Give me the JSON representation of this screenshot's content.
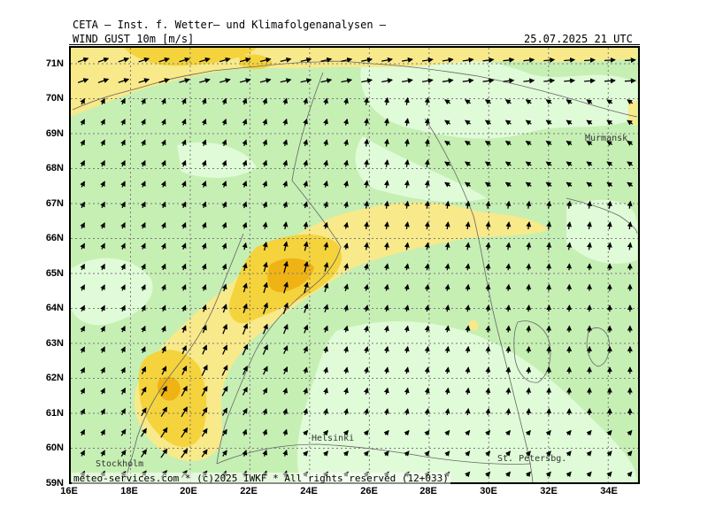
{
  "header": {
    "institute": "CETA – Inst. f. Wetter– und Klimafolgenanalysen –",
    "field": "WIND GUST 10m [m/s]",
    "valid_time": "25.07.2025 21 UTC"
  },
  "axes": {
    "lat_ticks": [
      "71N",
      "70N",
      "69N",
      "68N",
      "67N",
      "66N",
      "65N",
      "64N",
      "63N",
      "62N",
      "61N",
      "60N",
      "59N"
    ],
    "lon_ticks": [
      "16E",
      "18E",
      "20E",
      "22E",
      "24E",
      "26E",
      "28E",
      "30E",
      "32E",
      "34E"
    ]
  },
  "cities": {
    "murmansk": "Murmansk",
    "helsinki": "Helsinki",
    "stockholm": "Stockholm",
    "st_petersburg": "St. Petersbg."
  },
  "credit": "meteo-services.com * (c)2025 IWKF * All rights reserved (12+033)",
  "colors": {
    "land_light": "#e0fbd8",
    "land_mid": "#c6efb4",
    "gust_moderate": "#f8e98a",
    "gust_high": "#f5d33c",
    "gust_max": "#f0b316",
    "coast": "#666666",
    "grid": "#7a7a7a",
    "arrow": "#000000"
  }
}
